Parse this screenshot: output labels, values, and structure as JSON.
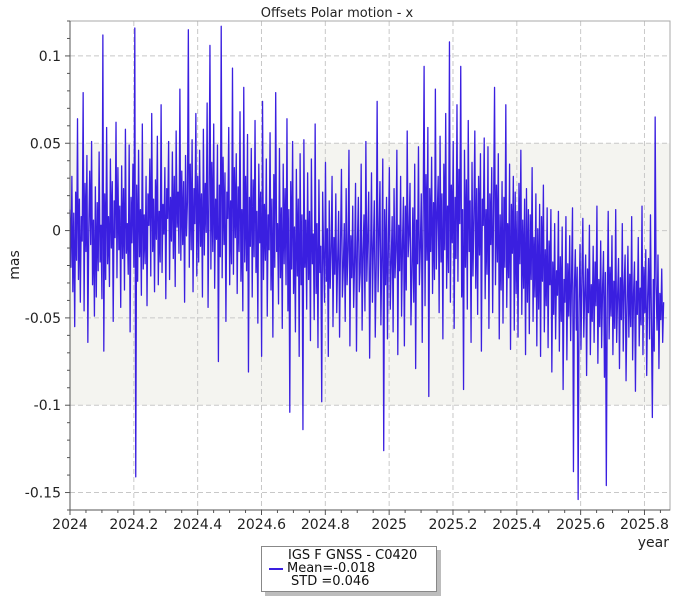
{
  "chart_data": {
    "type": "line",
    "title": "Offsets Polar motion - x",
    "xlabel": "year",
    "ylabel": "mas",
    "xlim": [
      2024.0,
      2025.88
    ],
    "ylim": [
      -0.16,
      0.12
    ],
    "grid": true,
    "x_ticks": [
      2024.0,
      2024.2,
      2024.4,
      2024.6,
      2024.8,
      2025.0,
      2025.2,
      2025.4,
      2025.6,
      2025.8
    ],
    "x_tick_labels": [
      "2024",
      "2024.2",
      "2024.4",
      "2024.6",
      "2024.8",
      "2025",
      "2025.2",
      "2025.4",
      "2025.6",
      "2025.8"
    ],
    "y_ticks": [
      0.1,
      0.05,
      0,
      -0.05,
      -0.1,
      -0.15
    ],
    "y_tick_labels": [
      "0.1",
      "0.05",
      "0",
      "-0.05",
      "-0.1",
      "-0.15"
    ],
    "band": {
      "from": -0.1,
      "to": 0.05,
      "color": "#f4f4f0"
    },
    "series": [
      {
        "name": "IGS F GNSS - C0420",
        "color": "#3a1fe0",
        "x_start": 2024.0,
        "x_end": 2025.86,
        "values": [
          0.012,
          -0.021,
          0.031,
          -0.035,
          0.01,
          -0.055,
          0.022,
          -0.017,
          0.064,
          -0.028,
          0.018,
          -0.041,
          0.008,
          -0.006,
          0.079,
          -0.046,
          0.027,
          -0.012,
          0.043,
          -0.064,
          0.001,
          0.034,
          -0.008,
          0.051,
          -0.031,
          0.006,
          -0.049,
          0.025,
          -0.038,
          0.016,
          -0.023,
          0.045,
          -0.018,
          0.003,
          -0.039,
          0.112,
          -0.069,
          0.021,
          -0.028,
          0.059,
          -0.019,
          0.008,
          -0.032,
          0.041,
          -0.01,
          0.028,
          -0.052,
          0.017,
          -0.004,
          0.062,
          -0.027,
          0.036,
          -0.011,
          0.014,
          -0.044,
          0.037,
          -0.016,
          0.024,
          -0.034,
          0.058,
          -0.013,
          0.004,
          -0.025,
          0.049,
          -0.058,
          0.019,
          -0.007,
          0.038,
          -0.021,
          0.116,
          -0.141,
          0.026,
          -0.029,
          0.046,
          -0.015,
          0.012,
          -0.037,
          0.061,
          -0.022,
          0.009,
          -0.019,
          0.031,
          -0.043,
          0.021,
          0.003,
          0.041,
          -0.026,
          0.067,
          -0.012,
          0.018,
          -0.035,
          0.029,
          -0.005,
          0.054,
          -0.031,
          0.011,
          -0.018,
          0.072,
          -0.024,
          0.015,
          -0.002,
          0.036,
          -0.039,
          0.024,
          0.007,
          0.051,
          -0.028,
          0.019,
          -0.006,
          0.045,
          -0.016,
          0.031,
          -0.032,
          0.057,
          0.002,
          0.022,
          -0.013,
          0.081,
          -0.017,
          0.034,
          -0.008,
          0.028,
          -0.041,
          0.043,
          -0.003,
          0.016,
          0.115,
          -0.021,
          0.038,
          -0.011,
          0.052,
          -0.035,
          0.024,
          0.004,
          0.067,
          -0.026,
          0.031,
          -0.018,
          0.046,
          -0.009,
          0.021,
          -0.038,
          0.058,
          -0.014,
          0.027,
          -0.001,
          0.073,
          -0.044,
          0.016,
          0.106,
          -0.022,
          0.039,
          -0.012,
          0.061,
          -0.033,
          0.018,
          -0.005,
          0.049,
          -0.075,
          0.026,
          -0.015,
          0.117,
          -0.027,
          0.042,
          -0.008,
          0.033,
          -0.052,
          0.022,
          0.007,
          0.059,
          -0.031,
          0.017,
          -0.019,
          0.093,
          -0.025,
          0.036,
          -0.004,
          0.044,
          -0.036,
          0.025,
          -0.012,
          0.068,
          -0.029,
          0.012,
          -0.046,
          0.082,
          -0.018,
          0.031,
          -0.023,
          0.055,
          -0.081,
          0.019,
          -0.009,
          0.047,
          -0.038,
          0.029,
          -0.015,
          0.063,
          -0.024,
          0.011,
          -0.053,
          0.038,
          -0.007,
          0.022,
          -0.072,
          0.074,
          -0.028,
          0.015,
          -0.017,
          0.041,
          -0.049,
          0.009,
          -0.011,
          0.056,
          -0.034,
          0.018,
          -0.061,
          0.032,
          -0.021,
          0.079,
          -0.012,
          0.004,
          -0.042,
          0.047,
          -0.027,
          0.013,
          -0.056,
          0.038,
          -0.019,
          0.024,
          -0.031,
          0.064,
          -0.046,
          0.012,
          -0.104,
          0.028,
          -0.022,
          0.051,
          -0.036,
          0.002,
          -0.058,
          0.035,
          -0.026,
          0.018,
          -0.072,
          0.044,
          -0.031,
          0.009,
          -0.114,
          0.052,
          -0.021,
          0.006,
          -0.045,
          0.033,
          -0.028,
          0.011,
          -0.063,
          0.041,
          -0.019,
          -0.002,
          -0.051,
          0.061,
          -0.036,
          0.004,
          -0.067,
          0.029,
          -0.024,
          -0.009,
          -0.098,
          0.022,
          -0.014,
          -0.041,
          0.039,
          -0.029,
          0.001,
          -0.072,
          0.017,
          -0.033,
          -0.012,
          0.031,
          -0.055,
          -0.004,
          -0.025,
          0.021,
          -0.047,
          -0.016,
          0.011,
          -0.061,
          -0.008,
          0.035,
          -0.038,
          -0.021,
          0.004,
          -0.052,
          0.024,
          -0.031,
          -0.011,
          0.046,
          -0.066,
          -0.003,
          -0.027,
          0.014,
          -0.044,
          -0.018,
          0.027,
          -0.069,
          -0.007,
          0.019,
          -0.035,
          -0.024,
          0.038,
          -0.057,
          -0.013,
          0.009,
          -0.046,
          0.051,
          -0.029,
          -0.004,
          0.022,
          -0.073,
          -0.016,
          0.033,
          -0.041,
          -0.009,
          0.017,
          -0.061,
          -0.021,
          0.074,
          -0.035,
          -0.002,
          0.028,
          -0.054,
          -0.014,
          0.041,
          -0.126,
          0.012,
          -0.031,
          0.019,
          -0.062,
          -0.006,
          0.036,
          -0.045,
          -0.019,
          0.008,
          -0.058,
          0.024,
          -0.027,
          -0.011,
          0.046,
          -0.071,
          0.003,
          -0.023,
          0.031,
          -0.049,
          -0.008,
          0.019,
          -0.066,
          0.014,
          -0.034,
          0.057,
          -0.015,
          -0.002,
          0.027,
          -0.054,
          -0.024,
          0.013,
          -0.041,
          0.038,
          -0.079,
          0.006,
          -0.019,
          0.048,
          -0.031,
          -0.009,
          0.021,
          -0.064,
          0.011,
          0.094,
          -0.043,
          0.032,
          -0.017,
          0.059,
          -0.095,
          0.024,
          -0.012,
          0.042,
          -0.036,
          0.016,
          -0.028,
          0.081,
          -0.022,
          0.009,
          0.031,
          -0.047,
          0.054,
          -0.018,
          0.021,
          -0.062,
          0.038,
          -0.011,
          0.067,
          -0.033,
          0.014,
          -0.024,
          0.108,
          -0.041,
          0.026,
          -0.007,
          0.051,
          -0.056,
          0.019,
          -0.016,
          0.072,
          -0.029,
          0.035,
          0.004,
          0.094,
          -0.038,
          0.012,
          -0.091,
          0.046,
          -0.021,
          0.029,
          -0.045,
          0.063,
          -0.012,
          0.017,
          -0.064,
          0.039,
          -0.026,
          0.007,
          0.057,
          -0.033,
          0.024,
          -0.048,
          0.031,
          -0.014,
          0.044,
          -0.069,
          0.018,
          0.003,
          0.053,
          -0.039,
          0.012,
          -0.025,
          0.048,
          -0.056,
          0.021,
          -0.008,
          0.036,
          -0.047,
          0.015,
          0.082,
          -0.031,
          0.026,
          -0.018,
          0.044,
          -0.062,
          0.009,
          -0.034,
          0.028,
          -0.053,
          0.019,
          -0.021,
          0.072,
          -0.044,
          0.004,
          -0.027,
          0.038,
          -0.068,
          0.015,
          -0.013,
          0.031,
          -0.057,
          0.022,
          -0.036,
          0.011,
          -0.061,
          0.027,
          -0.019,
          0.046,
          -0.048,
          0.006,
          -0.033,
          0.018,
          -0.071,
          0.024,
          -0.041,
          0.012,
          -0.059,
          0.009,
          -0.028,
          0.036,
          -0.052,
          -0.004,
          -0.038,
          0.021,
          -0.066,
          0.001,
          -0.045,
          0.015,
          -0.072,
          0.008,
          -0.029,
          0.026,
          -0.058,
          -0.011,
          -0.043,
          0.013,
          -0.067,
          -0.006,
          -0.031,
          0.012,
          -0.081,
          -0.018,
          -0.048,
          0.004,
          -0.062,
          -0.023,
          -0.037,
          0.011,
          -0.069,
          -0.015,
          -0.052,
          0.002,
          -0.091,
          -0.028,
          -0.041,
          0.008,
          -0.074,
          -0.019,
          -0.049,
          -0.003,
          -0.063,
          -0.026,
          0.013,
          -0.138,
          -0.033,
          -0.011,
          -0.057,
          -0.021,
          -0.154,
          -0.041,
          -0.008,
          -0.068,
          -0.027,
          0.007,
          -0.061,
          -0.036,
          -0.014,
          -0.083,
          -0.022,
          -0.047,
          0.003,
          -0.071,
          -0.031,
          -0.052,
          -0.009,
          -0.064,
          -0.018,
          -0.043,
          0.014,
          -0.076,
          -0.028,
          -0.055,
          -0.006,
          -0.067,
          -0.033,
          -0.012,
          -0.084,
          -0.024,
          -0.146,
          -0.039,
          0.011,
          -0.062,
          -0.021,
          -0.049,
          -0.003,
          -0.071,
          -0.029,
          -0.056,
          0.012,
          -0.064,
          -0.038,
          -0.016,
          -0.079,
          -0.027,
          -0.051,
          0.004,
          -0.069,
          -0.032,
          -0.014,
          -0.086,
          -0.043,
          -0.009,
          -0.061,
          -0.025,
          -0.055,
          0.008,
          -0.074,
          -0.036,
          -0.018,
          -0.092,
          -0.029,
          -0.048,
          -0.004,
          -0.066,
          -0.033,
          -0.054,
          0.014,
          -0.071,
          -0.021,
          -0.047,
          -0.011,
          -0.083,
          -0.038,
          -0.016,
          -0.062,
          0.009,
          -0.052,
          -0.107,
          -0.028,
          -0.069,
          0.065,
          -0.031,
          -0.057,
          -0.014,
          -0.079,
          -0.036,
          -0.051,
          -0.022,
          -0.064,
          -0.041
        ]
      }
    ],
    "stats": {
      "mean": "Mean=-0.018",
      "std": "STD =0.046"
    }
  }
}
